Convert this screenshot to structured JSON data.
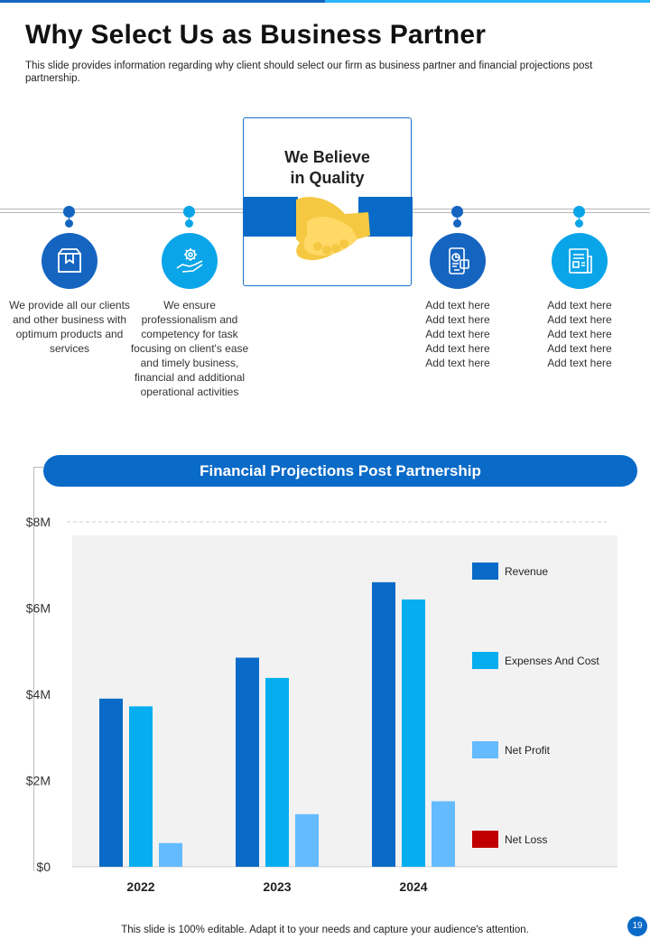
{
  "header": {
    "title": "Why Select Us as Business Partner",
    "subtitle": "This slide provides information regarding why client should select our firm as business partner and financial projections post partnership."
  },
  "center_box": {
    "title": "We Believe\nin Quality",
    "icon": "handshake-icon"
  },
  "features": [
    {
      "icon": "box-icon",
      "dot_color": "#1565c0",
      "circle_color": "#1565c0",
      "text": "We provide  all our clients and other business with optimum products and services"
    },
    {
      "icon": "hand-gear-icon",
      "dot_color": "#0aa5e8",
      "circle_color": "#0aa5e8",
      "text": "We ensure professionalism and competency for task focusing on client's ease and timely business, financial and additional operational activities"
    },
    {
      "icon": "mobile-chart-icon",
      "dot_color": "#1565c0",
      "circle_color": "#1565c0",
      "text": "Add text here\nAdd text here\nAdd text here\nAdd text here\nAdd text here"
    },
    {
      "icon": "document-chart-icon",
      "dot_color": "#0aa5e8",
      "circle_color": "#0aa5e8",
      "text": "Add text here\nAdd text here\nAdd text here\nAdd text here\nAdd text here"
    }
  ],
  "chart_banner": "Financial Projections Post Partnership",
  "chart_data": {
    "type": "bar",
    "categories": [
      "2022",
      "2023",
      "2024"
    ],
    "series": [
      {
        "name": "Revenue",
        "color": "#0a6ac7",
        "values": [
          3.9,
          4.85,
          6.6
        ]
      },
      {
        "name": "Expenses And Cost",
        "color": "#06aeef",
        "values": [
          3.72,
          4.38,
          6.2
        ]
      },
      {
        "name": "Net Profit",
        "color": "#64bbff",
        "values": [
          0.55,
          1.22,
          1.52
        ]
      },
      {
        "name": "Net Loss",
        "color": "#c00000",
        "values": [
          0,
          0,
          0
        ]
      }
    ],
    "ylim": [
      0,
      8
    ],
    "yticks": [
      {
        "value": 0,
        "label": "$0"
      },
      {
        "value": 2,
        "label": "$2M"
      },
      {
        "value": 4,
        "label": "$4M"
      },
      {
        "value": 6,
        "label": "$6M"
      },
      {
        "value": 8,
        "label": "$8M"
      }
    ],
    "legend_position": "right",
    "grid": false
  },
  "footer": {
    "text": "This slide is 100% editable. Adapt it to your needs and capture your audience's attention.",
    "page": "19"
  }
}
